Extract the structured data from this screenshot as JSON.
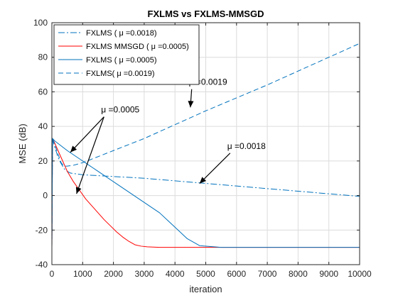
{
  "chart_data": {
    "type": "line",
    "title": "FXLMS vs FXLMS-MMSGD",
    "xlabel": "iteration",
    "ylabel": "MSE (dB)",
    "xlim": [
      0,
      10000
    ],
    "ylim": [
      -40,
      100
    ],
    "xticks": [
      0,
      1000,
      2000,
      3000,
      4000,
      5000,
      6000,
      7000,
      8000,
      9000,
      10000
    ],
    "yticks": [
      -40,
      -20,
      0,
      20,
      40,
      60,
      80,
      100
    ],
    "grid": true,
    "legend_position": "top-left",
    "series": [
      {
        "name": "FXLMS ( μ =0.0018)",
        "color": "#0072BD",
        "dash": "dashdot",
        "x": [
          0,
          20,
          60,
          100,
          150,
          200,
          300,
          400,
          500,
          600,
          800,
          1000,
          1500,
          2000,
          3000,
          4000,
          5000,
          6000,
          7000,
          8000,
          9000,
          9500,
          10000
        ],
        "y": [
          -30,
          33,
          30,
          27.5,
          25,
          22,
          18.5,
          15.5,
          14,
          13,
          12.5,
          12,
          11.5,
          11,
          10,
          8.5,
          7,
          5.5,
          4,
          2.5,
          1,
          0.3,
          -0.5
        ]
      },
      {
        "name": "FXLMS MMSGD ( μ =0.0005)",
        "color": "#FF0000",
        "dash": "solid",
        "x": [
          0,
          20,
          100,
          200,
          300,
          400,
          500,
          700,
          900,
          1100,
          1300,
          1500,
          1700,
          1900,
          2100,
          2300,
          2500,
          2700,
          2900,
          3100,
          3500,
          4000,
          5000,
          6000,
          7000,
          8000,
          9000,
          10000
        ],
        "y": [
          -30,
          33,
          30,
          26,
          22,
          18,
          14,
          8,
          3,
          -2,
          -6,
          -10,
          -14,
          -17.5,
          -21,
          -24,
          -26.5,
          -28.5,
          -29.3,
          -29.7,
          -30,
          -30,
          -30,
          -30,
          -30,
          -30,
          -30,
          -30
        ]
      },
      {
        "name": "FXLMS ( μ =0.0005)",
        "color": "#0072BD",
        "dash": "solid",
        "x": [
          0,
          20,
          100,
          500,
          1000,
          1500,
          2000,
          2500,
          3000,
          3500,
          3800,
          4100,
          4400,
          4800,
          5500,
          6000,
          7000,
          8000,
          9000,
          10000
        ],
        "y": [
          -30,
          33,
          31.5,
          26,
          20,
          14,
          8,
          2,
          -4,
          -10,
          -15,
          -20,
          -25,
          -29,
          -30,
          -30,
          -30,
          -30,
          -30,
          -30
        ]
      },
      {
        "name": "FXLMS( μ =0.0019)",
        "color": "#0072BD",
        "dash": "dashed",
        "x": [
          0,
          20,
          100,
          200,
          300,
          400,
          500,
          700,
          1000,
          2000,
          3000,
          4000,
          5000,
          6000,
          7000,
          8000,
          9000,
          10000
        ],
        "y": [
          -30,
          33,
          29,
          24,
          19,
          17,
          17,
          17.5,
          19,
          26,
          33,
          41,
          49,
          56.5,
          64,
          72,
          80,
          88
        ]
      }
    ],
    "annotations": [
      {
        "text": "μ =0.0019",
        "x": 4450,
        "y": 64,
        "arrow_to": [
          4500,
          51
        ]
      },
      {
        "text": "μ =0.0018",
        "x": 5700,
        "y": 27,
        "arrow_to": [
          4800,
          7
        ]
      },
      {
        "text": "μ =0.0005",
        "x": 1600,
        "y": 48,
        "arrow_to": [
          [
            600,
            25
          ],
          [
            800,
            1
          ]
        ]
      }
    ]
  }
}
